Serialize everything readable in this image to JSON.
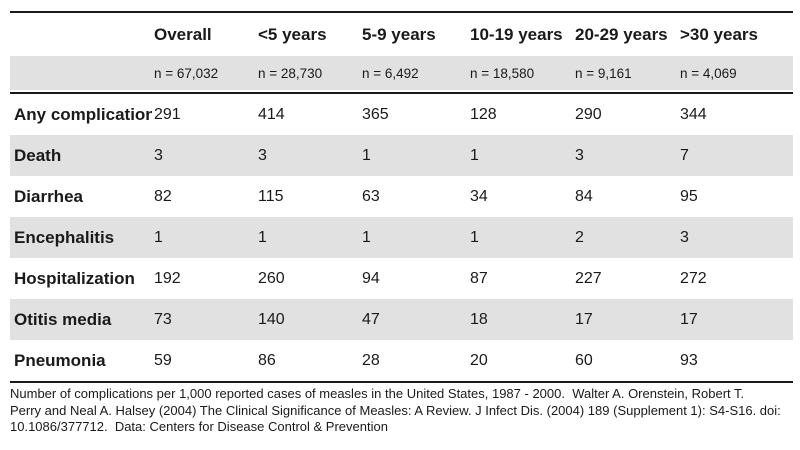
{
  "chart_data": {
    "type": "table",
    "title": "Number of complications per 1,000 reported cases of measles in the United States, 1987 - 2000",
    "columns": [
      "Overall",
      "<5 years",
      "5-9 years",
      "10-19 years",
      "20-29 years",
      ">30 years"
    ],
    "sample_sizes": [
      "n = 67,032",
      "n = 28,730",
      "n = 6,492",
      "n = 18,580",
      "n = 9,161",
      "n = 4,069"
    ],
    "rows": [
      {
        "label": "Any complication",
        "values": [
          291,
          414,
          365,
          128,
          290,
          344
        ]
      },
      {
        "label": "Death",
        "values": [
          3,
          3,
          1,
          1,
          3,
          7
        ]
      },
      {
        "label": "Diarrhea",
        "values": [
          82,
          115,
          63,
          34,
          84,
          95
        ]
      },
      {
        "label": "Encephalitis",
        "values": [
          1,
          1,
          1,
          1,
          2,
          3
        ]
      },
      {
        "label": "Hospitalization",
        "values": [
          192,
          260,
          94,
          87,
          227,
          272
        ]
      },
      {
        "label": "Otitis media",
        "values": [
          73,
          140,
          47,
          18,
          17,
          17
        ]
      },
      {
        "label": "Pneumonia",
        "values": [
          59,
          86,
          28,
          20,
          60,
          93
        ]
      }
    ],
    "caption_lines": [
      "Number of complications per 1,000 reported cases of measles in the United States, 1987 - 2000.  Walter A. Orenstein, Robert T.",
      "Perry and Neal A. Halsey (2004) The Clinical Significance of Measles: A Review. J Infect Dis. (2004) 189 (Supplement 1): S4-S16. doi:",
      "10.1086/377712.  Data: Centers for Disease Control & Prevention"
    ],
    "caption": "Number of complications per 1,000 reported cases of measles in the United States, 1987 - 2000.  Walter A. Orenstein, Robert T. Perry and Neal A. Halsey (2004) The Clinical Significance of Measles: A Review. J Infect Dis. (2004) 189 (Supplement 1): S4-S16. doi: 10.1086/377712.  Data: Centers for Disease Control & Prevention"
  },
  "colors": {
    "stripe": "#e1e1e1",
    "rule": "#1a1a1a",
    "ink": "#1a1a1a",
    "background": "#ffffff"
  }
}
